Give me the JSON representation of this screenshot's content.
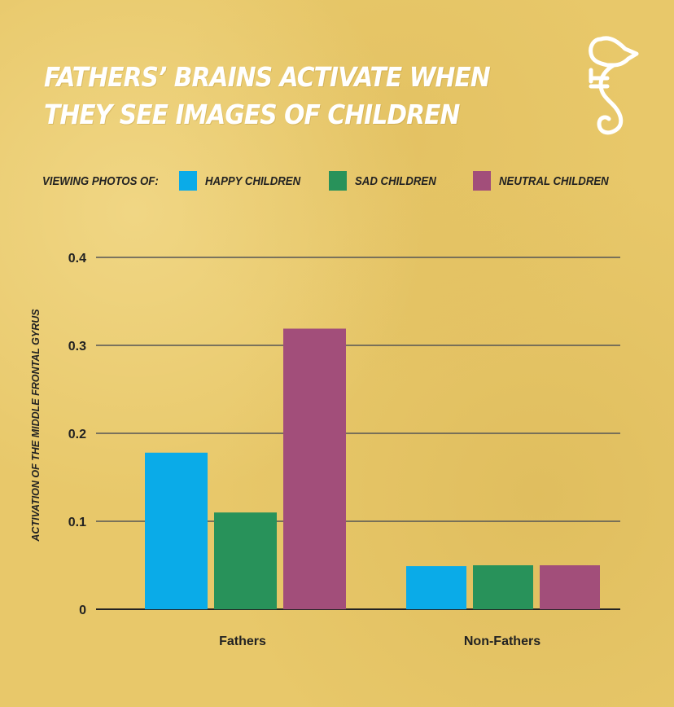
{
  "title": {
    "line1": "FATHERS’ BRAINS ACTIVATE WHEN",
    "line2": "THEY SEE IMAGES OF CHILDREN"
  },
  "logo": {
    "icon": "seahorse-logo-icon",
    "color": "#ffffff"
  },
  "legend": {
    "title": "VIEWING PHOTOS OF:",
    "items": [
      {
        "label": "HAPPY CHILDREN",
        "color": "#0aabe8"
      },
      {
        "label": "SAD CHILDREN",
        "color": "#28925a"
      },
      {
        "label": "NEUTRAL CHILDREN",
        "color": "#a24e7a"
      }
    ]
  },
  "chart_data": {
    "type": "bar",
    "title": "FATHERS’ BRAINS ACTIVATE WHEN THEY SEE IMAGES OF CHILDREN",
    "xlabel": "",
    "ylabel": "ACTIVATION OF THE MIDDLE FRONTAL GYRUS",
    "categories": [
      "Fathers",
      "Non-Fathers"
    ],
    "series": [
      {
        "name": "HAPPY CHILDREN",
        "color": "#0aabe8",
        "values": [
          0.178,
          0.049
        ]
      },
      {
        "name": "SAD CHILDREN",
        "color": "#28925a",
        "values": [
          0.11,
          0.05
        ]
      },
      {
        "name": "NEUTRAL CHILDREN",
        "color": "#a24e7a",
        "values": [
          0.319,
          0.05
        ]
      }
    ],
    "ylim": [
      0,
      0.4
    ],
    "yticks": [
      "0",
      "0.1",
      "0.2",
      "0.3",
      "0.4"
    ],
    "yticks_values": [
      0,
      0.1,
      0.2,
      0.3,
      0.4
    ],
    "grid": true,
    "legend_position": "top"
  }
}
